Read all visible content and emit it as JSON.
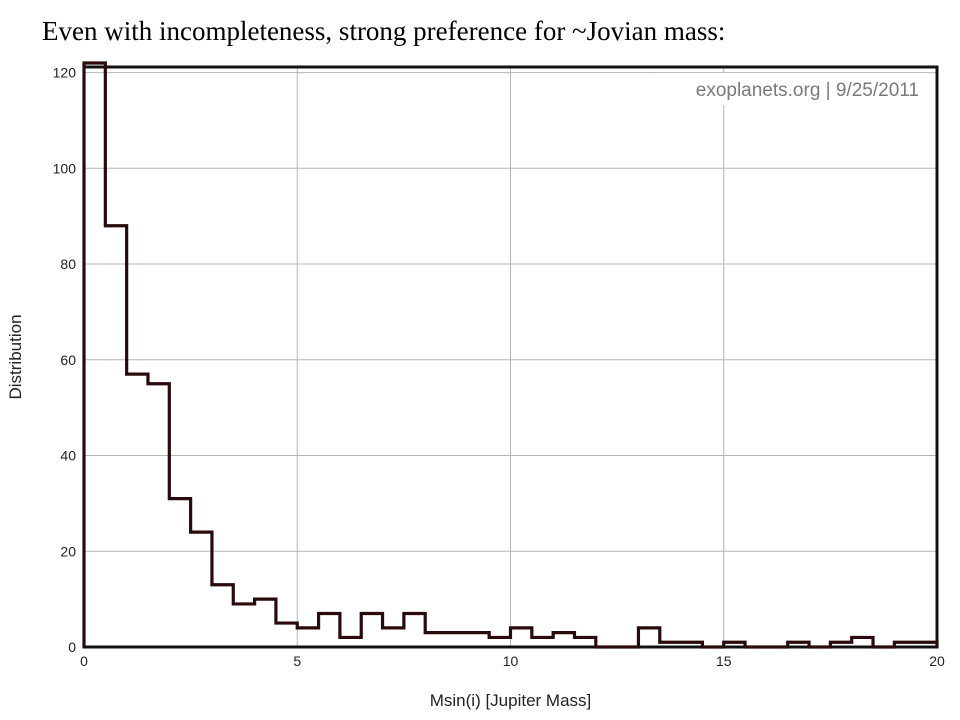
{
  "slide": {
    "title": "Even with incompleteness, strong preference for ~Jovian mass:"
  },
  "chart_data": {
    "type": "histogram",
    "credit": "exoplanets.org | 9/25/2011",
    "xlabel": "Msin(i) [Jupiter Mass]",
    "ylabel": "Distribution",
    "xlim": [
      0,
      20
    ],
    "ylim": [
      0,
      122
    ],
    "grid": true,
    "bin_width": 0.5,
    "x_ticks": [
      0,
      5,
      10,
      15,
      20
    ],
    "y_ticks": [
      0,
      20,
      40,
      60,
      80,
      100,
      120
    ],
    "bin_starts": [
      0,
      0.5,
      1,
      1.5,
      2,
      2.5,
      3,
      3.5,
      4,
      4.5,
      5,
      5.5,
      6,
      6.5,
      7,
      7.5,
      8,
      8.5,
      9,
      9.5,
      10,
      10.5,
      11,
      11.5,
      12,
      12.5,
      13,
      13.5,
      14,
      14.5,
      15,
      15.5,
      16,
      16.5,
      17,
      17.5,
      18,
      18.5,
      19,
      19.5
    ],
    "counts": [
      122,
      88,
      57,
      55,
      31,
      24,
      13,
      9,
      10,
      5,
      4,
      7,
      2,
      7,
      4,
      7,
      3,
      3,
      3,
      2,
      4,
      2,
      3,
      2,
      0,
      0,
      4,
      1,
      1,
      0,
      1,
      0,
      0,
      1,
      0,
      1,
      2,
      0,
      1,
      1
    ],
    "line_color": "#2a0a0a",
    "grid_color": "#b5b5b5"
  }
}
